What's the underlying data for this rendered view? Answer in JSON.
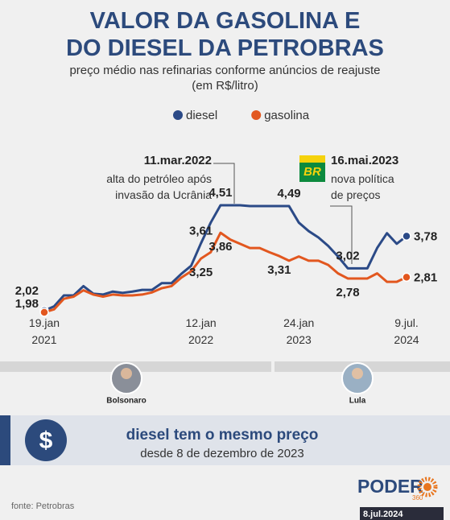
{
  "header": {
    "title": "VALOR DA GASOLINA E\nDO DIESEL DA PETROBRAS",
    "subtitle": "preço médio nas refinarias conforme anúncios de reajuste\n(em R$/litro)"
  },
  "chart_data": {
    "type": "line",
    "categories": [
      "19.jan\n2021",
      null,
      null,
      null,
      null,
      null,
      null,
      null,
      null,
      null,
      null,
      null,
      null,
      null,
      null,
      null,
      "12.jan\n2022",
      null,
      null,
      null,
      null,
      null,
      null,
      null,
      null,
      null,
      "24.jan\n2023",
      null,
      null,
      null,
      null,
      null,
      null,
      null,
      null,
      null,
      null,
      "9.jul.\n2024"
    ],
    "series": [
      {
        "name": "diesel",
        "color": "#2b4a87",
        "values": [
          2.02,
          2.12,
          2.38,
          2.38,
          2.6,
          2.42,
          2.4,
          2.47,
          2.44,
          2.47,
          2.51,
          2.51,
          2.67,
          2.67,
          2.89,
          3.08,
          3.61,
          4.1,
          4.51,
          4.51,
          4.51,
          4.49,
          4.49,
          4.49,
          4.49,
          4.49,
          4.1,
          3.9,
          3.75,
          3.55,
          3.3,
          3.02,
          3.02,
          3.02,
          3.5,
          3.85,
          3.6,
          3.78
        ],
        "value_labels": [
          "2,02",
          null,
          null,
          null,
          null,
          null,
          null,
          null,
          null,
          null,
          null,
          null,
          null,
          null,
          null,
          null,
          "3,61",
          null,
          "4,51",
          null,
          null,
          null,
          null,
          null,
          null,
          "4,49",
          null,
          null,
          null,
          null,
          null,
          "3,02",
          null,
          null,
          null,
          null,
          null,
          "3,78"
        ]
      },
      {
        "name": "gasolina",
        "color": "#e2571f",
        "values": [
          1.98,
          2.05,
          2.3,
          2.35,
          2.5,
          2.4,
          2.35,
          2.4,
          2.38,
          2.38,
          2.4,
          2.45,
          2.55,
          2.6,
          2.8,
          2.95,
          3.25,
          3.4,
          3.86,
          3.7,
          3.6,
          3.5,
          3.5,
          3.4,
          3.31,
          3.2,
          3.3,
          3.2,
          3.2,
          3.1,
          2.9,
          2.78,
          2.78,
          2.78,
          2.9,
          2.7,
          2.7,
          2.81
        ],
        "value_labels": [
          "1,98",
          null,
          null,
          null,
          null,
          null,
          null,
          null,
          null,
          null,
          null,
          null,
          null,
          null,
          null,
          null,
          "3,25",
          null,
          "3,86",
          null,
          null,
          null,
          null,
          null,
          "3,31",
          null,
          null,
          null,
          null,
          null,
          null,
          "2,78",
          null,
          null,
          null,
          null,
          null,
          "2,81"
        ]
      }
    ]
  },
  "annotations": [
    {
      "title": "11.mar.2022",
      "text": "alta do petróleo após\ninvasão da Ucrânia"
    },
    {
      "logo": "BR",
      "title": "16.mai.2023",
      "text": "nova política\nde preços"
    }
  ],
  "periods": [
    {
      "name": "Bolsonaro"
    },
    {
      "name": "Lula"
    }
  ],
  "note": {
    "icon": "$",
    "title": "diesel tem o mesmo preço",
    "text": "desde 8 de dezembro de 2023"
  },
  "source": "fonte: Petrobras",
  "brand": {
    "name": "PODER",
    "sub": "360",
    "date": "8.jul.2024"
  }
}
